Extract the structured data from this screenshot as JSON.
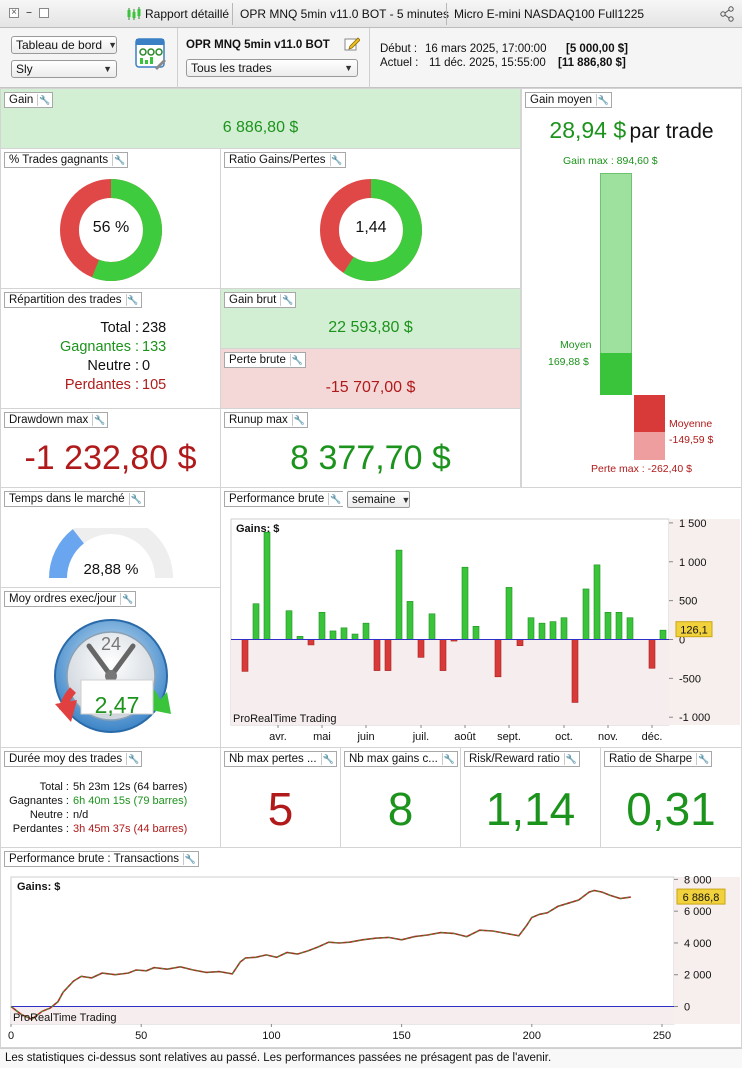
{
  "titlebar": {
    "tab1": "Rapport détaillé",
    "tab2": "OPR MNQ 5min v11.0 BOT - 5 minutes",
    "tab3": "Micro E-mini NASDAQ100 Full1225"
  },
  "toolbar": {
    "view_select": "Tableau de bord",
    "user_select": "Sly",
    "strategy_name": "OPR MNQ 5min v11.0 BOT",
    "trades_filter": "Tous les trades",
    "start_label": "Début :",
    "start_date": "16 mars 2025, 17:00:00",
    "start_value": "[5 000,00 $]",
    "current_label": "Actuel :",
    "current_date": "11 déc. 2025, 15:55:00",
    "current_value": "[11 886,80 $]"
  },
  "gain": {
    "title": "Gain",
    "value": "6 886,80 $"
  },
  "gain_moyen": {
    "title": "Gain moyen",
    "value": "28,94 $",
    "suffix": "par trade",
    "max_gain_label": "Gain max : 894,60 $",
    "avg_win_label": "Moyen",
    "avg_win_value": "169,88 $",
    "avg_loss_label": "Moyenne",
    "avg_loss_value": "-149,59 $",
    "max_loss_label": "Perte max : -262,40 $",
    "bars": {
      "max_gain": 894.6,
      "avg_gain": 169.88,
      "avg_loss": 149.59,
      "max_loss": 262.4
    }
  },
  "pct_gagnants": {
    "title": "% Trades gagnants",
    "value": "56 %",
    "fraction": 0.56
  },
  "ratio_gp": {
    "title": "Ratio Gains/Pertes",
    "value": "1,44",
    "fraction": 0.59
  },
  "repartition": {
    "title": "Répartition des trades",
    "total_label": "Total :",
    "total": "238",
    "win_label": "Gagnantes :",
    "win": "133",
    "neutral_label": "Neutre :",
    "neutral": "0",
    "loss_label": "Perdantes :",
    "loss": "105"
  },
  "gain_brut": {
    "title": "Gain brut",
    "value": "22 593,80 $"
  },
  "perte_brute": {
    "title": "Perte brute",
    "value": "-15 707,00 $"
  },
  "drawdown": {
    "title": "Drawdown max",
    "value": "-1 232,80 $"
  },
  "runup": {
    "title": "Runup max",
    "value": "8 377,70 $"
  },
  "temps_marche": {
    "title": "Temps dans le marché",
    "value": "28,88 %",
    "fraction": 0.2888
  },
  "perf_brute": {
    "title": "Performance brute",
    "period": "semaine"
  },
  "ordres": {
    "title": "Moy ordres exec/jour",
    "value": "2,47",
    "clock_label": "24"
  },
  "duree": {
    "title": "Durée moy des trades",
    "total_label": "Total :",
    "total": "5h 23m 12s (64 barres)",
    "win_label": "Gagnantes :",
    "win": "6h 40m 15s (79 barres)",
    "neutral_label": "Neutre :",
    "neutral": "n/d",
    "loss_label": "Perdantes :",
    "loss": "3h 45m 37s (44 barres)"
  },
  "nb_pertes": {
    "title": "Nb max pertes ...",
    "value": "5"
  },
  "nb_gains": {
    "title": "Nb max gains c...",
    "value": "8"
  },
  "risk_reward": {
    "title": "Risk/Reward ratio",
    "value": "1,14"
  },
  "sharpe": {
    "title": "Ratio de Sharpe",
    "value": "0,31"
  },
  "transactions": {
    "title": "Performance brute : Transactions"
  },
  "footer": "Les statistiques ci-dessus sont relatives au passé. Les performances passées ne présagent pas de l'avenir.",
  "colors": {
    "green": "#1c931c",
    "red": "#b01a1a",
    "bar_green": "#39c43b",
    "bar_red": "#d83a3a",
    "blue_line": "#2e2ec8",
    "marker": "#f1d23c"
  },
  "icons": {
    "chart": "candlestick-icon",
    "edit": "pencil-icon",
    "share": "share-icon",
    "wrench": "wrench-icon"
  },
  "chart_data": [
    {
      "type": "bar",
      "label": "Gains: $",
      "watermark": "ProRealTime Trading",
      "current_marker": "126,1",
      "current_value": 126.1,
      "ylim": [
        -1100,
        1550
      ],
      "yticks": [
        1500,
        1000,
        500,
        0,
        -500,
        -1000
      ],
      "ytick_labels": [
        "1 500",
        "1 000",
        "500",
        "0",
        "-500",
        "-1 000"
      ],
      "month_ticks": [
        {
          "label": "avr.",
          "week": 3
        },
        {
          "label": "mai",
          "week": 7
        },
        {
          "label": "juin",
          "week": 11
        },
        {
          "label": "juil.",
          "week": 16
        },
        {
          "label": "août",
          "week": 20
        },
        {
          "label": "sept.",
          "week": 24
        },
        {
          "label": "oct.",
          "week": 29
        },
        {
          "label": "nov.",
          "week": 33
        },
        {
          "label": "déc.",
          "week": 37
        }
      ],
      "values": [
        -410,
        460,
        1380,
        0,
        370,
        40,
        -70,
        350,
        110,
        150,
        70,
        210,
        -400,
        -400,
        1150,
        490,
        -230,
        330,
        -400,
        -20,
        930,
        170,
        0,
        -480,
        670,
        -80,
        280,
        210,
        230,
        280,
        -810,
        650,
        960,
        350,
        350,
        280,
        0,
        -370,
        120
      ]
    },
    {
      "type": "line",
      "label": "Gains: $",
      "watermark": "ProRealTime Trading",
      "current_marker": "6 886,8",
      "current_value": 6886.8,
      "xlim": [
        0,
        250
      ],
      "xticks": [
        0,
        50,
        100,
        150,
        200,
        250
      ],
      "ylim": [
        -1100,
        8150
      ],
      "yticks": [
        8000,
        6000,
        4000,
        2000,
        0
      ],
      "ytick_labels": [
        "8 000",
        "6 000",
        "4 000",
        "2 000",
        "0"
      ],
      "series": [
        {
          "x": [
            0,
            4,
            8,
            12,
            15,
            18,
            20,
            24,
            27,
            31,
            35,
            40,
            45,
            48,
            52,
            55,
            60,
            65,
            70,
            75,
            80,
            85,
            88,
            90,
            94,
            98,
            102,
            106,
            110,
            114,
            118,
            122,
            126,
            130,
            135,
            140,
            145,
            150,
            155,
            160,
            165,
            170,
            175,
            180,
            185,
            190,
            195,
            198,
            200,
            203,
            206,
            210,
            214,
            218,
            222,
            224,
            227,
            230,
            234,
            238
          ],
          "y": [
            0,
            -500,
            -800,
            -300,
            -100,
            300,
            900,
            1600,
            1900,
            1800,
            2100,
            2000,
            2100,
            2300,
            2250,
            2450,
            2350,
            2500,
            2300,
            2150,
            2200,
            2050,
            2800,
            3050,
            3100,
            3250,
            3100,
            3400,
            3300,
            3500,
            3750,
            4050,
            4000,
            4050,
            4200,
            4300,
            4350,
            4200,
            4400,
            4500,
            4650,
            4600,
            4400,
            4800,
            4750,
            4600,
            4450,
            5100,
            5600,
            5800,
            5900,
            6300,
            6500,
            6700,
            7200,
            7300,
            7200,
            7000,
            6800,
            6886.8
          ]
        }
      ]
    }
  ]
}
